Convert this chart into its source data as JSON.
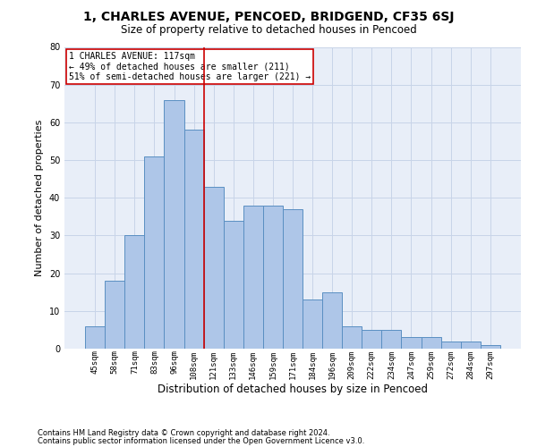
{
  "title": "1, CHARLES AVENUE, PENCOED, BRIDGEND, CF35 6SJ",
  "subtitle": "Size of property relative to detached houses in Pencoed",
  "xlabel": "Distribution of detached houses by size in Pencoed",
  "ylabel": "Number of detached properties",
  "footnote1": "Contains HM Land Registry data © Crown copyright and database right 2024.",
  "footnote2": "Contains public sector information licensed under the Open Government Licence v3.0.",
  "categories": [
    "45sqm",
    "58sqm",
    "71sqm",
    "83sqm",
    "96sqm",
    "108sqm",
    "121sqm",
    "133sqm",
    "146sqm",
    "159sqm",
    "171sqm",
    "184sqm",
    "196sqm",
    "209sqm",
    "222sqm",
    "234sqm",
    "247sqm",
    "259sqm",
    "272sqm",
    "284sqm",
    "297sqm"
  ],
  "values": [
    6,
    18,
    30,
    51,
    66,
    58,
    43,
    34,
    38,
    38,
    37,
    13,
    15,
    6,
    5,
    5,
    3,
    3,
    2,
    2,
    1
  ],
  "bar_color": "#aec6e8",
  "bar_edge_color": "#5a8fc2",
  "vline_x": 5.5,
  "vline_color": "#cc0000",
  "annotation_text": "1 CHARLES AVENUE: 117sqm\n← 49% of detached houses are smaller (211)\n51% of semi-detached houses are larger (221) →",
  "annotation_box_color": "#ffffff",
  "annotation_box_edge": "#cc0000",
  "ylim": [
    0,
    80
  ],
  "grid_color": "#c8d4e8",
  "background_color": "#e8eef8",
  "title_fontsize": 10,
  "subtitle_fontsize": 8.5,
  "ylabel_fontsize": 8,
  "xlabel_fontsize": 8.5,
  "annot_fontsize": 7,
  "tick_fontsize": 6.5,
  "footnote_fontsize": 6
}
